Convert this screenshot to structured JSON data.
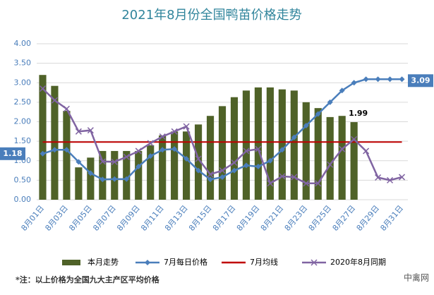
{
  "chart_data": {
    "type": "bar",
    "title": "2021年8月份全国鸭苗价格走势",
    "categories": [
      "8月01日",
      null,
      "8月03日",
      null,
      "8月05日",
      null,
      "8月07日",
      null,
      "8月09日",
      null,
      "8月11日",
      null,
      "8月13日",
      null,
      "8月15日",
      null,
      "8月17日",
      null,
      "8月19日",
      null,
      "8月21日",
      null,
      "8月23日",
      null,
      "8月25日",
      null,
      "8月27日",
      null,
      "8月29日",
      null,
      "8月31日"
    ],
    "series": [
      {
        "name": "本月走势",
        "type": "bar",
        "color": "#4f6228",
        "values": [
          3.2,
          2.92,
          2.28,
          0.83,
          1.08,
          1.25,
          1.25,
          1.25,
          1.25,
          1.4,
          1.65,
          1.75,
          1.75,
          1.93,
          2.15,
          2.4,
          2.63,
          2.8,
          2.88,
          2.88,
          2.83,
          2.8,
          2.5,
          2.35,
          2.12,
          2.15,
          1.99,
          null,
          null,
          null,
          null
        ]
      },
      {
        "name": "7月每日价格",
        "type": "line",
        "marker": "diamond",
        "color": "#4a7ebb",
        "values": [
          1.18,
          1.28,
          1.28,
          0.97,
          0.68,
          0.52,
          0.53,
          0.53,
          0.85,
          1.12,
          1.28,
          1.3,
          1.05,
          0.75,
          0.52,
          0.58,
          0.75,
          0.88,
          0.85,
          1.0,
          1.28,
          1.6,
          1.9,
          2.2,
          2.5,
          2.8,
          3.0,
          3.09,
          3.09,
          3.09,
          3.09
        ]
      },
      {
        "name": "7月均线",
        "type": "line",
        "marker": "none",
        "color": "#c00000",
        "values": [
          1.48,
          1.48,
          1.48,
          1.48,
          1.48,
          1.48,
          1.48,
          1.48,
          1.48,
          1.48,
          1.48,
          1.48,
          1.48,
          1.48,
          1.48,
          1.48,
          1.48,
          1.48,
          1.48,
          1.48,
          1.48,
          1.48,
          1.48,
          1.48,
          1.48,
          1.48,
          1.48,
          1.48,
          1.48,
          1.48,
          1.48
        ]
      },
      {
        "name": "2020年8月同期",
        "type": "line",
        "marker": "x",
        "color": "#8064a2",
        "values": [
          2.85,
          2.55,
          2.33,
          1.75,
          1.78,
          0.98,
          0.97,
          1.1,
          1.25,
          1.45,
          1.62,
          1.75,
          1.88,
          1.05,
          0.65,
          0.75,
          0.95,
          1.25,
          1.3,
          0.42,
          0.6,
          0.58,
          0.42,
          0.42,
          0.9,
          1.3,
          1.55,
          1.25,
          0.57,
          0.5,
          0.58
        ]
      }
    ],
    "ylim": [
      0,
      4
    ],
    "yticks": [
      {
        "value": 0,
        "label": "0.00"
      },
      {
        "value": 0.5,
        "label": "0.50"
      },
      {
        "value": 1,
        "label": "1.00"
      },
      {
        "value": 1.5,
        "label": "1.50"
      },
      {
        "value": 2,
        "label": "2.00"
      },
      {
        "value": 2.5,
        "label": "2.50"
      },
      {
        "value": 3,
        "label": "3.00"
      },
      {
        "value": 3.5,
        "label": "3.50"
      },
      {
        "value": 4,
        "label": "4.00"
      }
    ],
    "grid": true,
    "legend": "bottom",
    "note": "*注：以上价格为全国九大主产区平均价格",
    "watermark": "中禽网"
  }
}
